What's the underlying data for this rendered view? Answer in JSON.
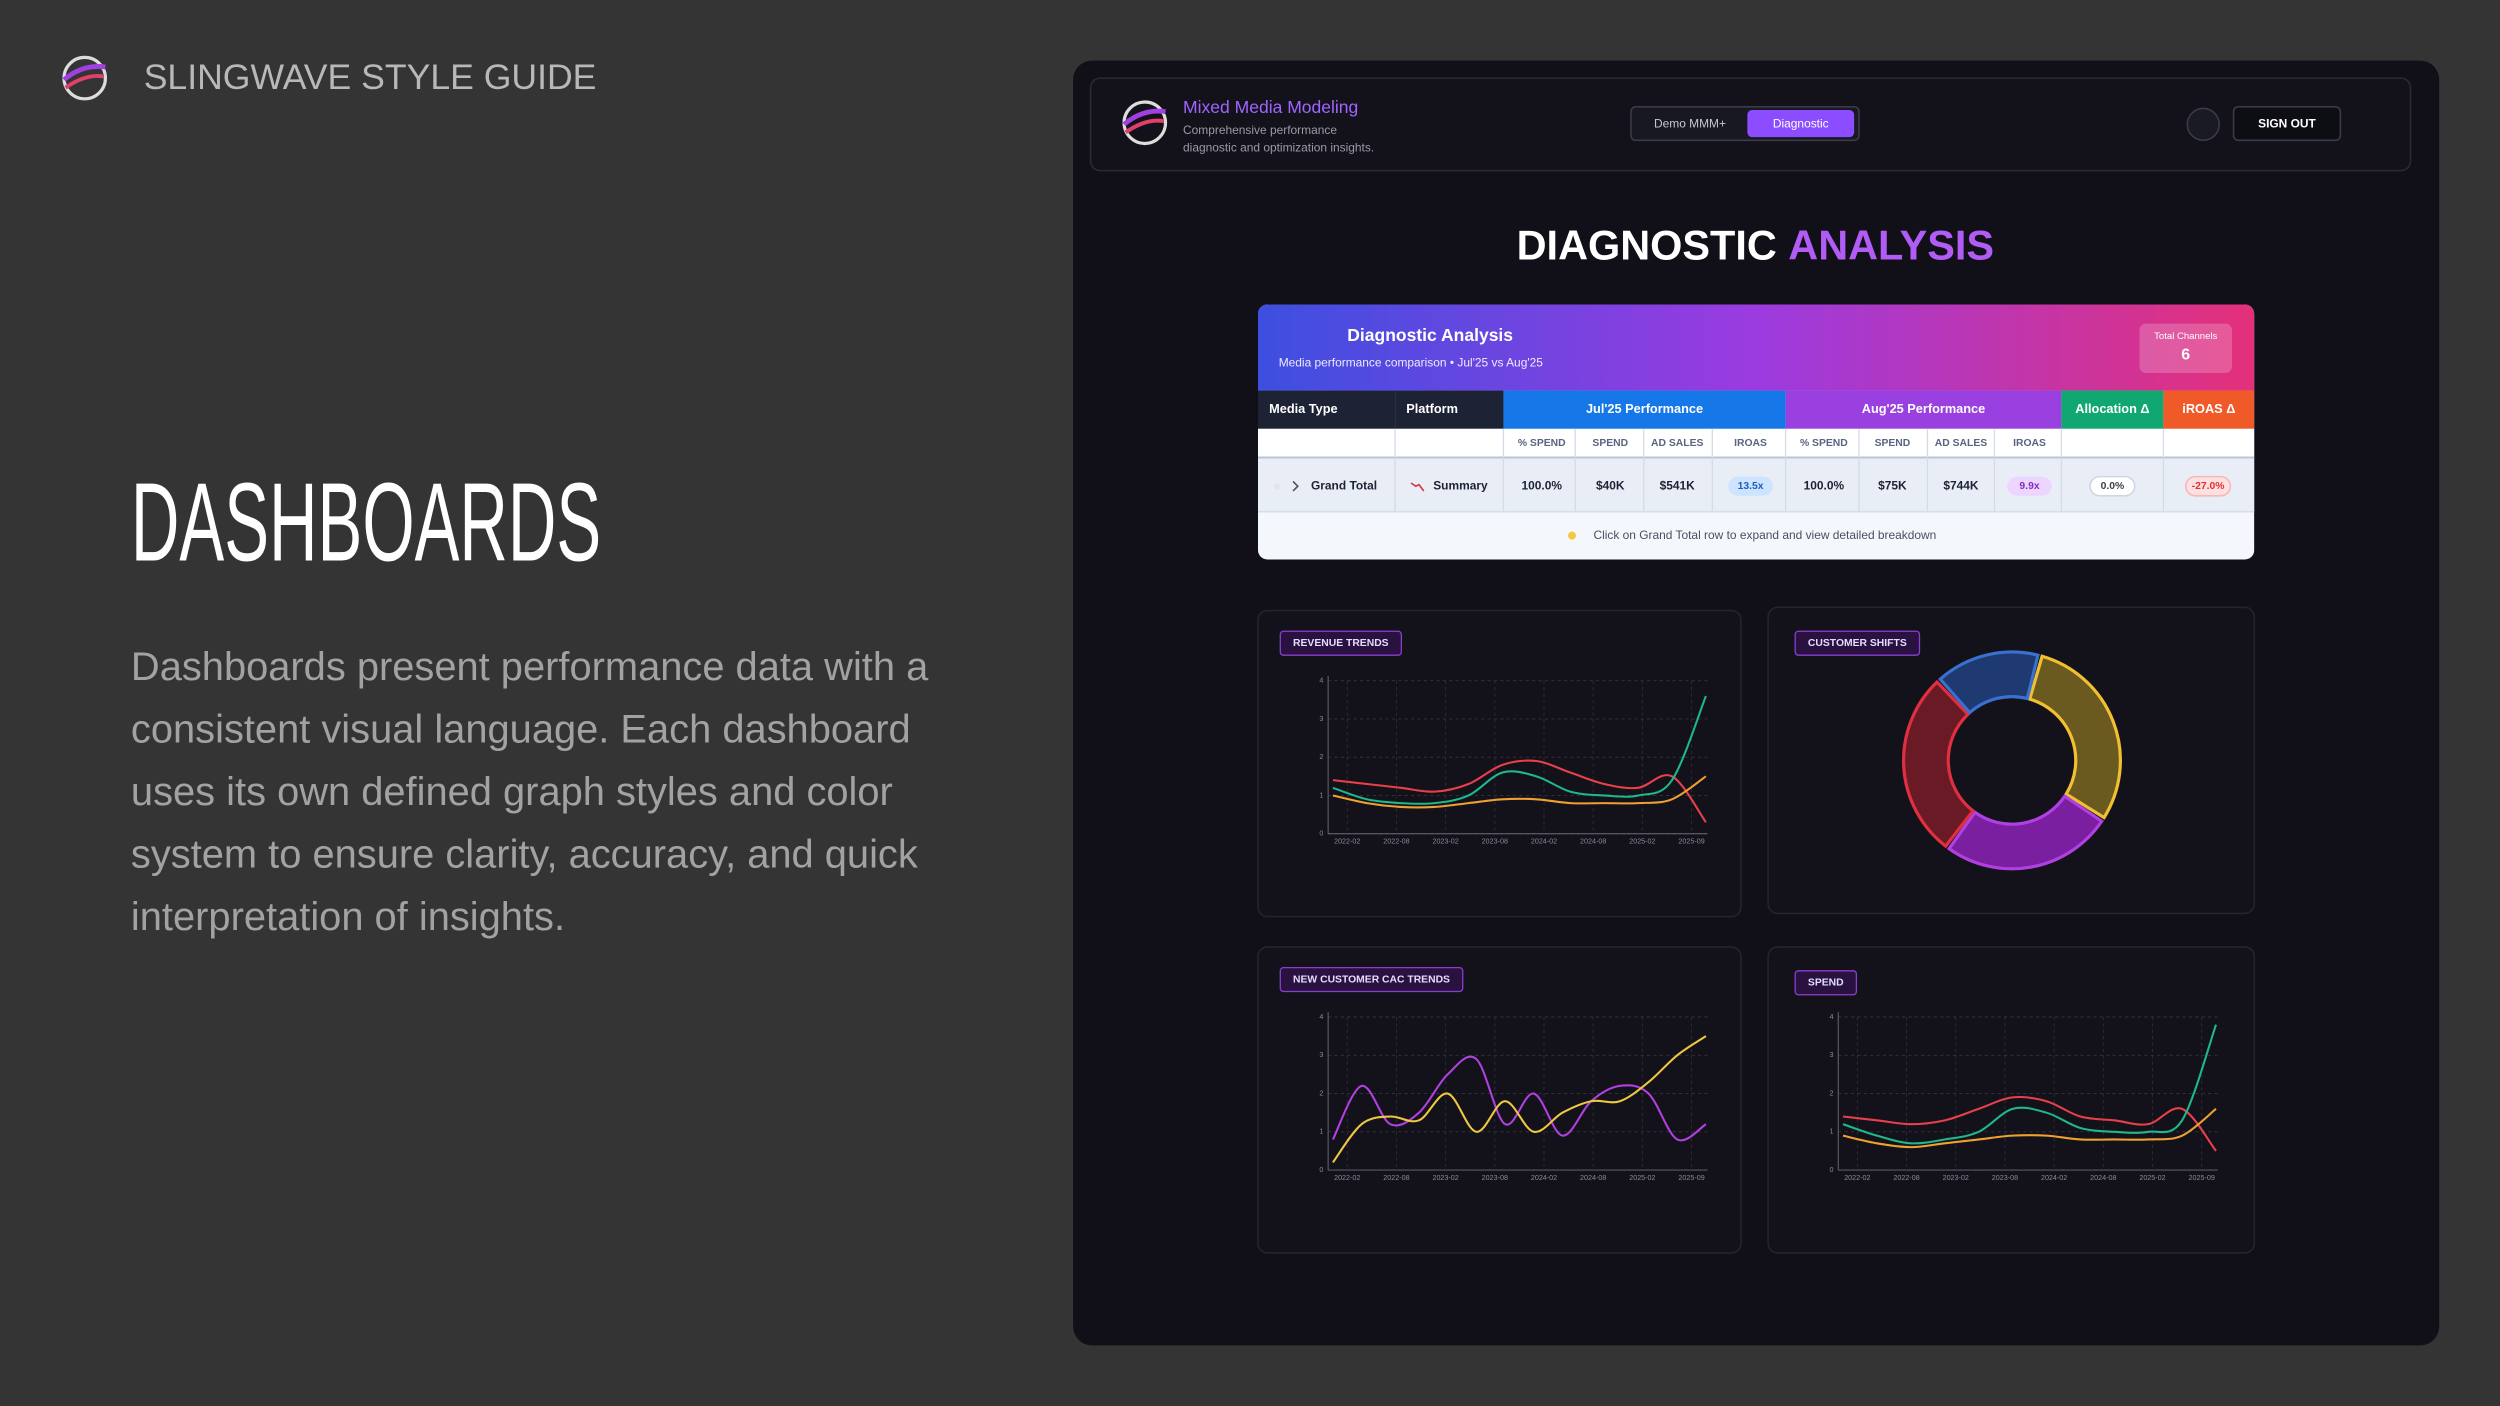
{
  "header": {
    "title": "SLINGWAVE STYLE GUIDE"
  },
  "section": {
    "title": "DASHBOARDS",
    "body_lines": [
      "Dashboards present performance data with a",
      "consistent visual language. Each dashboard",
      "uses its own defined graph styles and color",
      "system to ensure clarity, accuracy, and quick",
      "interpretation of insights."
    ]
  },
  "app": {
    "name": "Mixed Media Modeling",
    "tagline_lines": [
      "Comprehensive performance",
      "diagnostic and optimization insights."
    ],
    "tabs": [
      "Demo MMM+",
      "Diagnostic"
    ],
    "sign_out": "SIGN OUT",
    "page_title": [
      "DIAGNOSTIC",
      "ANALYSIS"
    ]
  },
  "table": {
    "title": "Diagnostic Analysis",
    "subtitle": "Media performance comparison • Jul'25 vs Aug'25",
    "total_label": "Total Channels",
    "total_value": 6,
    "groups": [
      "Media Type",
      "Platform",
      "Jul'25 Performance",
      "Aug'25 Performance",
      "Allocation Δ",
      "iROAS Δ"
    ],
    "subheaders": [
      "% SPEND",
      "SPEND",
      "AD SALES",
      "IROAS",
      "% SPEND",
      "SPEND",
      "AD SALES",
      "IROAS"
    ],
    "row": [
      "Grand Total",
      "Summary",
      "100.0%",
      "$40K",
      "$541K",
      "13.5x",
      "100.0%",
      "$75K",
      "$744K",
      "9.9x",
      "0.0%",
      "-27.0%"
    ],
    "hint": "Click on Grand Total row to expand and view detailed breakdown"
  },
  "charts": [
    {
      "type": "line",
      "title": "REVENUE TRENDS",
      "ylim": [
        0,
        4
      ],
      "yticks": [
        0,
        1,
        2,
        3,
        4
      ],
      "x_labels": [
        "2022-02",
        "2022-08",
        "2023-02",
        "2023-08",
        "2024-02",
        "2024-08",
        "2025-02",
        "2025-09"
      ],
      "series": [
        {
          "color": "#e8404a",
          "values": [
            1.4,
            1.3,
            1.2,
            1.1,
            1.3,
            1.8,
            1.9,
            1.6,
            1.3,
            1.2,
            1.5,
            0.3
          ]
        },
        {
          "color": "#1fb88a",
          "values": [
            1.2,
            0.9,
            0.8,
            0.8,
            1.0,
            1.6,
            1.5,
            1.1,
            1.0,
            1.0,
            1.4,
            3.6
          ]
        },
        {
          "color": "#f0a030",
          "values": [
            1.0,
            0.8,
            0.7,
            0.7,
            0.8,
            0.9,
            0.9,
            0.8,
            0.8,
            0.8,
            0.9,
            1.5
          ]
        }
      ]
    },
    {
      "type": "pie",
      "title": "CUSTOMER SHIFTS",
      "values": [
        30,
        26,
        28,
        16
      ],
      "colors": [
        "#f0c030",
        "#b040e0",
        "#e03040",
        "#3a70d0"
      ],
      "fills": [
        "#6b5a1f",
        "#7a1fa0",
        "#6a1a24",
        "#1e3a70"
      ]
    },
    {
      "type": "line",
      "title": "NEW CUSTOMER CAC TRENDS",
      "ylim": [
        0,
        4
      ],
      "yticks": [
        0,
        1,
        2,
        3,
        4
      ],
      "x_labels": [
        "2022-02",
        "2022-08",
        "2023-02",
        "2023-08",
        "2024-02",
        "2024-08",
        "2025-02",
        "2025-09"
      ],
      "series": [
        {
          "color": "#b040e0",
          "values": [
            0.8,
            2.2,
            1.2,
            1.5,
            2.5,
            2.9,
            1.2,
            2.0,
            0.9,
            1.8,
            2.2,
            2.0,
            0.8,
            1.2
          ]
        },
        {
          "color": "#f0c840",
          "values": [
            0.2,
            1.2,
            1.4,
            1.3,
            2.0,
            1.0,
            1.8,
            1.0,
            1.5,
            1.8,
            1.8,
            2.3,
            3.0,
            3.5
          ]
        }
      ]
    },
    {
      "type": "line",
      "title": "SPEND",
      "ylim": [
        0,
        4
      ],
      "yticks": [
        0,
        1,
        2,
        3,
        4
      ],
      "x_labels": [
        "2022-02",
        "2022-08",
        "2023-02",
        "2023-08",
        "2024-02",
        "2024-08",
        "2025-02",
        "2025-09"
      ],
      "series": [
        {
          "color": "#e8404a",
          "values": [
            1.4,
            1.3,
            1.2,
            1.3,
            1.6,
            1.9,
            1.8,
            1.4,
            1.3,
            1.2,
            1.6,
            0.5
          ]
        },
        {
          "color": "#1fb88a",
          "values": [
            1.2,
            0.9,
            0.7,
            0.8,
            1.0,
            1.6,
            1.5,
            1.1,
            1.0,
            1.0,
            1.3,
            3.8
          ]
        },
        {
          "color": "#f0a030",
          "values": [
            0.9,
            0.7,
            0.6,
            0.7,
            0.8,
            0.9,
            0.9,
            0.8,
            0.8,
            0.8,
            0.9,
            1.6
          ]
        }
      ]
    }
  ]
}
